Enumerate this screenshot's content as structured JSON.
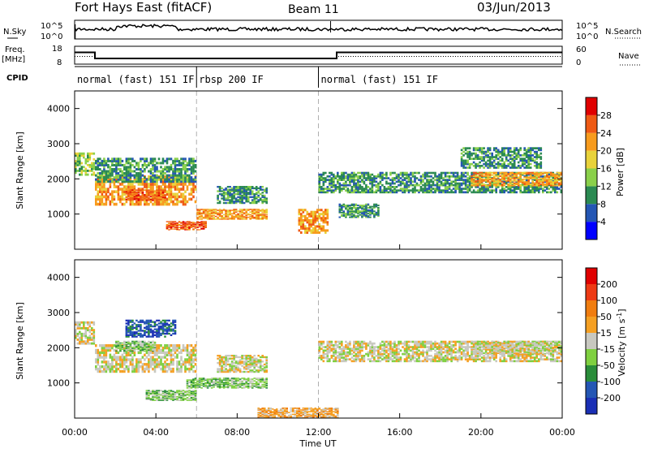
{
  "header": {
    "title": "Fort Hays East (fitACF)",
    "beam": "Beam 11",
    "date": "03/Jun/2013"
  },
  "top_panels": {
    "nsky_label": "N.Sky",
    "nsearch_label": "N.Search",
    "count_ticks": [
      "10^5",
      "10^0"
    ],
    "freq_label": "Freq.",
    "freq_unit": "[MHz]",
    "freq_ticks": [
      "18",
      "8"
    ],
    "nave_label": "Nave",
    "nave_ticks": [
      "60",
      "0"
    ],
    "cpid_label": "CPID",
    "cpid_modes": [
      {
        "label": "normal (fast) 151 IF",
        "start_hour": 0,
        "end_hour": 6
      },
      {
        "label": "rbsp 200 IF",
        "start_hour": 6,
        "end_hour": 12
      },
      {
        "label": "normal (fast) 151 IF",
        "start_hour": 12,
        "end_hour": 24
      }
    ],
    "freq_series": [
      [
        0,
        14.6
      ],
      [
        1,
        14.6
      ],
      [
        1,
        11.2
      ],
      [
        12.9,
        11.2
      ],
      [
        12.9,
        14.6
      ],
      [
        24,
        14.6
      ]
    ],
    "nave_series": [
      [
        0,
        26
      ],
      [
        1,
        26
      ],
      [
        1,
        19
      ],
      [
        12.9,
        19
      ],
      [
        12.9,
        26
      ],
      [
        24,
        26
      ]
    ]
  },
  "chart_data": [
    {
      "type": "heatmap",
      "title": "Power",
      "xlabel": "Time UT",
      "ylabel": "Slant Range [km]",
      "xlim": [
        0,
        24
      ],
      "ylim": [
        0,
        4500
      ],
      "x_ticks": [
        "00:00",
        "04:00",
        "08:00",
        "12:00",
        "16:00",
        "20:00",
        "00:00"
      ],
      "y_ticks": [
        "1000",
        "2000",
        "3000",
        "4000"
      ],
      "colorbar_label": "Power [dB]",
      "colorbar_ticks": [
        "4",
        "8",
        "12",
        "16",
        "20",
        "24",
        "28"
      ],
      "colorbar_colors": [
        "#0000ff",
        "#2456b4",
        "#2b8a52",
        "#8ad04a",
        "#e8d23a",
        "#f79b1d",
        "#ef5a14",
        "#e00000"
      ],
      "regions": [
        {
          "t": [
            0,
            1
          ],
          "r": [
            2100,
            2750
          ],
          "level": 3
        },
        {
          "t": [
            1,
            6
          ],
          "r": [
            1250,
            2100
          ],
          "level": 5
        },
        {
          "t": [
            1,
            6
          ],
          "r": [
            1900,
            2600
          ],
          "level": 2
        },
        {
          "t": [
            2.5,
            4.5
          ],
          "r": [
            1380,
            1700
          ],
          "level": 6
        },
        {
          "t": [
            4.5,
            6.5
          ],
          "r": [
            550,
            800
          ],
          "level": 6
        },
        {
          "t": [
            6,
            9.5
          ],
          "r": [
            850,
            1150
          ],
          "level": 5
        },
        {
          "t": [
            7,
            9.5
          ],
          "r": [
            1300,
            1800
          ],
          "level": 2
        },
        {
          "t": [
            11,
            12.5
          ],
          "r": [
            450,
            1150
          ],
          "level": 5
        },
        {
          "t": [
            12,
            24
          ],
          "r": [
            1600,
            2200
          ],
          "level": 2
        },
        {
          "t": [
            13,
            15
          ],
          "r": [
            900,
            1300
          ],
          "level": 2
        },
        {
          "t": [
            19.5,
            24
          ],
          "r": [
            1800,
            2200
          ],
          "level": 5
        },
        {
          "t": [
            19,
            23
          ],
          "r": [
            2300,
            2900
          ],
          "level": 2
        }
      ]
    },
    {
      "type": "heatmap",
      "title": "Velocity",
      "xlabel": "Time UT",
      "ylabel": "Slant Range [km]",
      "xlim": [
        0,
        24
      ],
      "ylim": [
        0,
        4500
      ],
      "x_ticks": [
        "00:00",
        "04:00",
        "08:00",
        "12:00",
        "16:00",
        "20:00",
        "00:00"
      ],
      "y_ticks": [
        "1000",
        "2000",
        "3000",
        "4000"
      ],
      "colorbar_label": "Velocity [m s^-1]",
      "colorbar_ticks": [
        "200",
        "100",
        "50",
        "15",
        "-15",
        "-50",
        "-100",
        "-200"
      ],
      "colorbar_colors": [
        "#1a2fb5",
        "#2456b4",
        "#2a8d3a",
        "#7fd040",
        "#c8c8c0",
        "#f5a023",
        "#f07d10",
        "#ee3a14",
        "#e00000"
      ],
      "regions": [
        {
          "t": [
            0,
            1
          ],
          "r": [
            2100,
            2750
          ],
          "level": 4
        },
        {
          "t": [
            1,
            6
          ],
          "r": [
            1300,
            2100
          ],
          "level": 4
        },
        {
          "t": [
            2.5,
            5
          ],
          "r": [
            2300,
            2800
          ],
          "level": 1
        },
        {
          "t": [
            2,
            4
          ],
          "r": [
            1900,
            2200
          ],
          "level": 3
        },
        {
          "t": [
            3.5,
            6
          ],
          "r": [
            500,
            800
          ],
          "level": 3
        },
        {
          "t": [
            5.5,
            9.5
          ],
          "r": [
            850,
            1150
          ],
          "level": 3
        },
        {
          "t": [
            7,
            9.5
          ],
          "r": [
            1300,
            1800
          ],
          "level": 4
        },
        {
          "t": [
            9,
            13
          ],
          "r": [
            0,
            300
          ],
          "level": 5
        },
        {
          "t": [
            12,
            24
          ],
          "r": [
            1600,
            2200
          ],
          "level": 4
        },
        {
          "t": [
            19.5,
            24
          ],
          "r": [
            1800,
            2200
          ],
          "level": 4
        }
      ]
    }
  ],
  "colors": {
    "axis": "#000000",
    "dashed_divider": "#b0b0b0"
  }
}
